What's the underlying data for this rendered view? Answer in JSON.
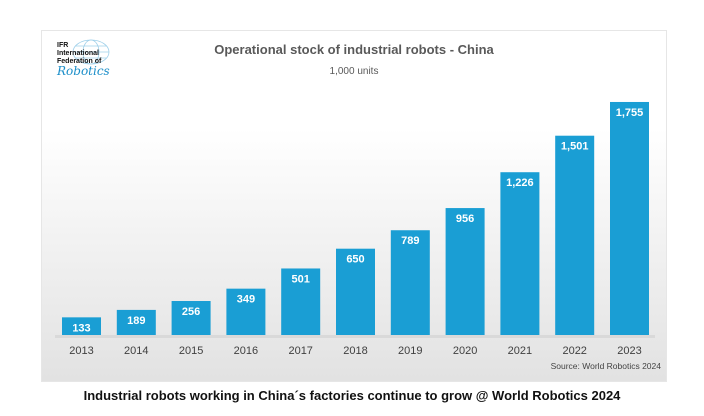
{
  "chart_data": {
    "type": "bar",
    "title": "Operational stock of industrial robots - China",
    "subtitle": "1,000 units",
    "categories": [
      "2013",
      "2014",
      "2015",
      "2016",
      "2017",
      "2018",
      "2019",
      "2020",
      "2021",
      "2022",
      "2023"
    ],
    "values": [
      133,
      189,
      256,
      349,
      501,
      650,
      789,
      956,
      1226,
      1501,
      1755
    ],
    "value_labels": [
      "133",
      "189",
      "256",
      "349",
      "501",
      "650",
      "789",
      "956",
      "1,226",
      "1,501",
      "1,755"
    ],
    "ylim": [
      0,
      1800
    ],
    "grid": false,
    "bar_color": "#1a9ed4",
    "source": "Source: World Robotics 2024"
  },
  "logo": {
    "lines": [
      "IFR",
      "International",
      "Federation of"
    ],
    "script": "Robotics"
  },
  "caption": "Industrial robots working in China´s factories continue to grow @ World Robotics 2024"
}
